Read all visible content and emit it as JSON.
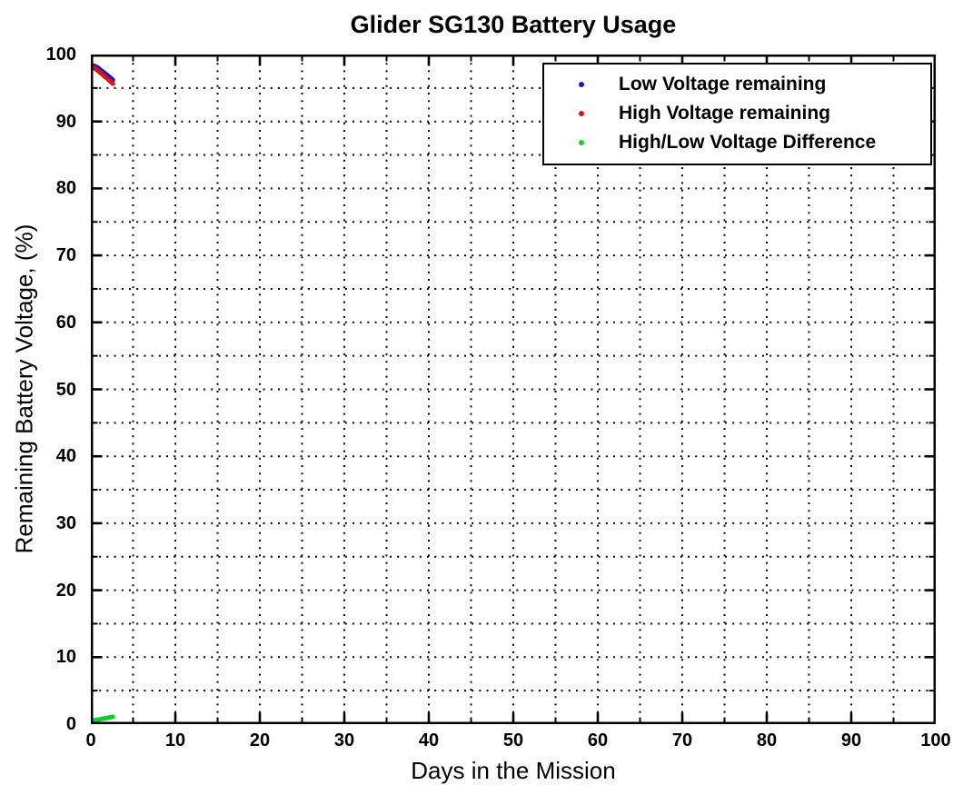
{
  "figure": {
    "title": "Glider SG130 Battery Usage",
    "background": "#ffffff",
    "border_color": "#000000"
  },
  "axes": {
    "xlabel": "Days in the Mission",
    "ylabel": "Remaining Battery Voltage, (%)"
  },
  "legend": {
    "position": "top-right",
    "items": [
      {
        "label": "Low Voltage remaining",
        "color": "#1414cc"
      },
      {
        "label": "High Voltage remaining",
        "color": "#d91414"
      },
      {
        "label": "High/Low Voltage Difference",
        "color": "#14cc2e"
      }
    ]
  },
  "chart_data": {
    "type": "scatter",
    "title": "Glider SG130 Battery Usage",
    "xlabel": "Days in the Mission",
    "ylabel": "Remaining Battery Voltage, (%)",
    "xlim": [
      0,
      100
    ],
    "ylim": [
      0,
      100
    ],
    "xticks": [
      0,
      10,
      20,
      30,
      40,
      50,
      60,
      70,
      80,
      90,
      100
    ],
    "yticks": [
      0,
      10,
      20,
      30,
      40,
      50,
      60,
      70,
      80,
      90,
      100
    ],
    "minor_tick_step": 5,
    "grid": {
      "on": true,
      "style": "dotted",
      "step": 5,
      "color": "#000000"
    },
    "legend_position": "top-right",
    "x": [
      0,
      0.2,
      0.4,
      0.6,
      0.8,
      1.0,
      1.2,
      1.4,
      1.6,
      1.8,
      2.0,
      2.2,
      2.4,
      2.6
    ],
    "series": [
      {
        "name": "Low Voltage remaining",
        "color": "#1414cc",
        "marker": "dot",
        "values": [
          98.5,
          98.4,
          98.3,
          98.2,
          98.05,
          97.85,
          97.65,
          97.45,
          97.25,
          97.05,
          96.85,
          96.65,
          96.45,
          96.2
        ]
      },
      {
        "name": "High Voltage remaining",
        "color": "#d91414",
        "marker": "dot",
        "values": [
          98.3,
          98.15,
          98.0,
          97.8,
          97.6,
          97.4,
          97.2,
          97.0,
          96.75,
          96.55,
          96.35,
          96.1,
          95.9,
          95.65
        ]
      },
      {
        "name": "High/Low Voltage Difference",
        "color": "#14cc2e",
        "marker": "dot",
        "values": [
          0.45,
          0.5,
          0.55,
          0.6,
          0.65,
          0.7,
          0.75,
          0.8,
          0.85,
          0.9,
          0.95,
          1.0,
          1.05,
          1.1
        ]
      }
    ]
  }
}
